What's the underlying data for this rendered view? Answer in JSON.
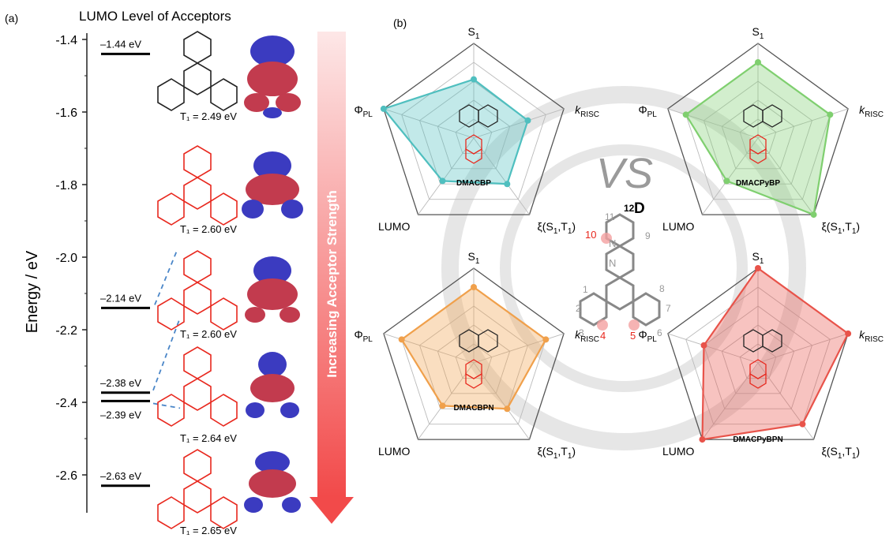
{
  "figure": {
    "panel_a_label": "(a)",
    "panel_b_label": "(b)",
    "title_a": "LUMO Level of Acceptors",
    "y_axis_label": "Energy / eV",
    "arrow_label": "Increasing Acceptor Strength",
    "vs_label": "VS",
    "center_marker": "D",
    "center_numbers": {
      "n12": "12",
      "n11": "11",
      "n10": "10",
      "n9": "9",
      "n1": "1",
      "n2": "2",
      "n3": "3",
      "n4": "4",
      "n5": "5",
      "n6": "6",
      "n7": "7",
      "n8": "8"
    },
    "n_atom": "N"
  },
  "chart_data": [
    {
      "type": "energy-level",
      "ylim": [
        -2.7,
        -1.4
      ],
      "yticks": [
        "-1.4",
        "-1.6",
        "-1.8",
        "-2.0",
        "-2.2",
        "-2.4",
        "-2.6"
      ],
      "ylabel": "Energy / eV",
      "levels": [
        {
          "value": -1.44,
          "label": "–1.44 eV",
          "t1": "T₁ = 2.49 eV"
        },
        {
          "value": -2.14,
          "label": "–2.14 eV",
          "t1": "T₁ = 2.60 eV"
        },
        {
          "value": -2.38,
          "label": "–2.38 eV",
          "t1": "T₁ = 2.60 eV"
        },
        {
          "value": -2.39,
          "label": "–2.39 eV",
          "t1": "T₁ = 2.64 eV"
        },
        {
          "value": -2.63,
          "label": "–2.63 eV",
          "t1": "T₁ = 2.65 eV"
        }
      ]
    },
    {
      "type": "radar",
      "axes": [
        "S₁",
        "k_RISC",
        "ξ(S₁,T₁)",
        "LUMO",
        "Φ_PL"
      ],
      "series": [
        {
          "name": "DMACBP",
          "color": "#4fbfbf",
          "values": [
            0.62,
            0.6,
            0.6,
            0.56,
            1.0
          ]
        },
        {
          "name": "DMACPyBP",
          "color": "#7fcf6f",
          "values": [
            0.8,
            0.8,
            1.0,
            0.56,
            0.8
          ]
        },
        {
          "name": "DMACBPN",
          "color": "#f0a04b",
          "values": [
            0.8,
            0.8,
            0.6,
            0.56,
            0.8
          ]
        },
        {
          "name": "DMACPyBPN",
          "color": "#e8534a",
          "values": [
            1.0,
            1.0,
            0.8,
            1.0,
            0.6
          ]
        }
      ]
    }
  ]
}
